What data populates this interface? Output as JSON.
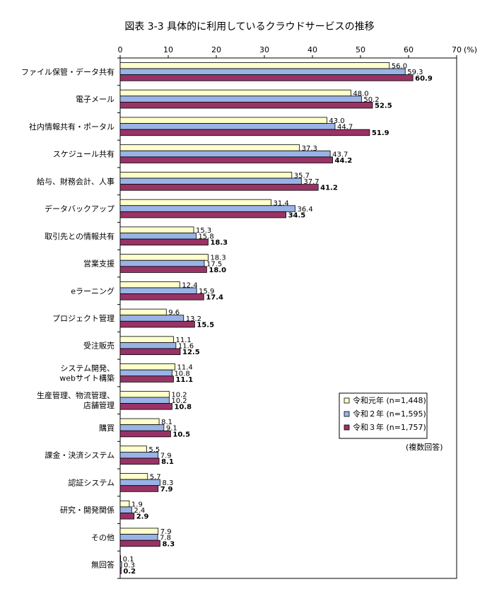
{
  "chart_data": {
    "type": "bar",
    "orientation": "horizontal",
    "title": "図表 3-3 具体的に利用しているクラウドサービスの推移",
    "xlim": [
      0,
      70
    ],
    "xticks": [
      0,
      10,
      20,
      30,
      40,
      50,
      60,
      70
    ],
    "x_unit": "(%)",
    "note": "(複数回答)",
    "legend_placement": "right",
    "categories": [
      "ファイル保管・データ共有",
      "電子メール",
      "社内情報共有・ポータル",
      "スケジュール共有",
      "給与、財務会計、人事",
      "データバックアップ",
      "取引先との情報共有",
      "営業支援",
      "eラーニング",
      "プロジェクト管理",
      "受注販売",
      "システム開発、\nwebサイト構築",
      "生産管理、物流管理、\n店舗管理",
      "購買",
      "課金・決済システム",
      "認証システム",
      "研究・開発関係",
      "その他",
      "無回答"
    ],
    "series": [
      {
        "name": "令和元年 (n=1,448)",
        "color": "#ffffcc",
        "values": [
          56.0,
          48.0,
          43.0,
          37.3,
          35.7,
          31.4,
          15.3,
          18.3,
          12.4,
          9.6,
          11.1,
          11.4,
          10.2,
          8.1,
          5.5,
          5.7,
          1.9,
          7.9,
          0.1
        ]
      },
      {
        "name": "令和２年 (n=1,595)",
        "color": "#99b3e6",
        "values": [
          59.3,
          50.2,
          44.7,
          43.7,
          37.7,
          36.4,
          15.8,
          17.5,
          15.9,
          13.2,
          11.6,
          10.8,
          10.2,
          9.1,
          7.9,
          8.3,
          2.4,
          7.8,
          0.3
        ]
      },
      {
        "name": "令和３年 (n=1,757)",
        "color": "#993366",
        "values": [
          60.9,
          52.5,
          51.9,
          44.2,
          41.2,
          34.5,
          18.3,
          18.0,
          17.4,
          15.5,
          12.5,
          11.1,
          10.8,
          10.5,
          8.1,
          7.9,
          2.9,
          8.3,
          0.2
        ]
      }
    ]
  }
}
